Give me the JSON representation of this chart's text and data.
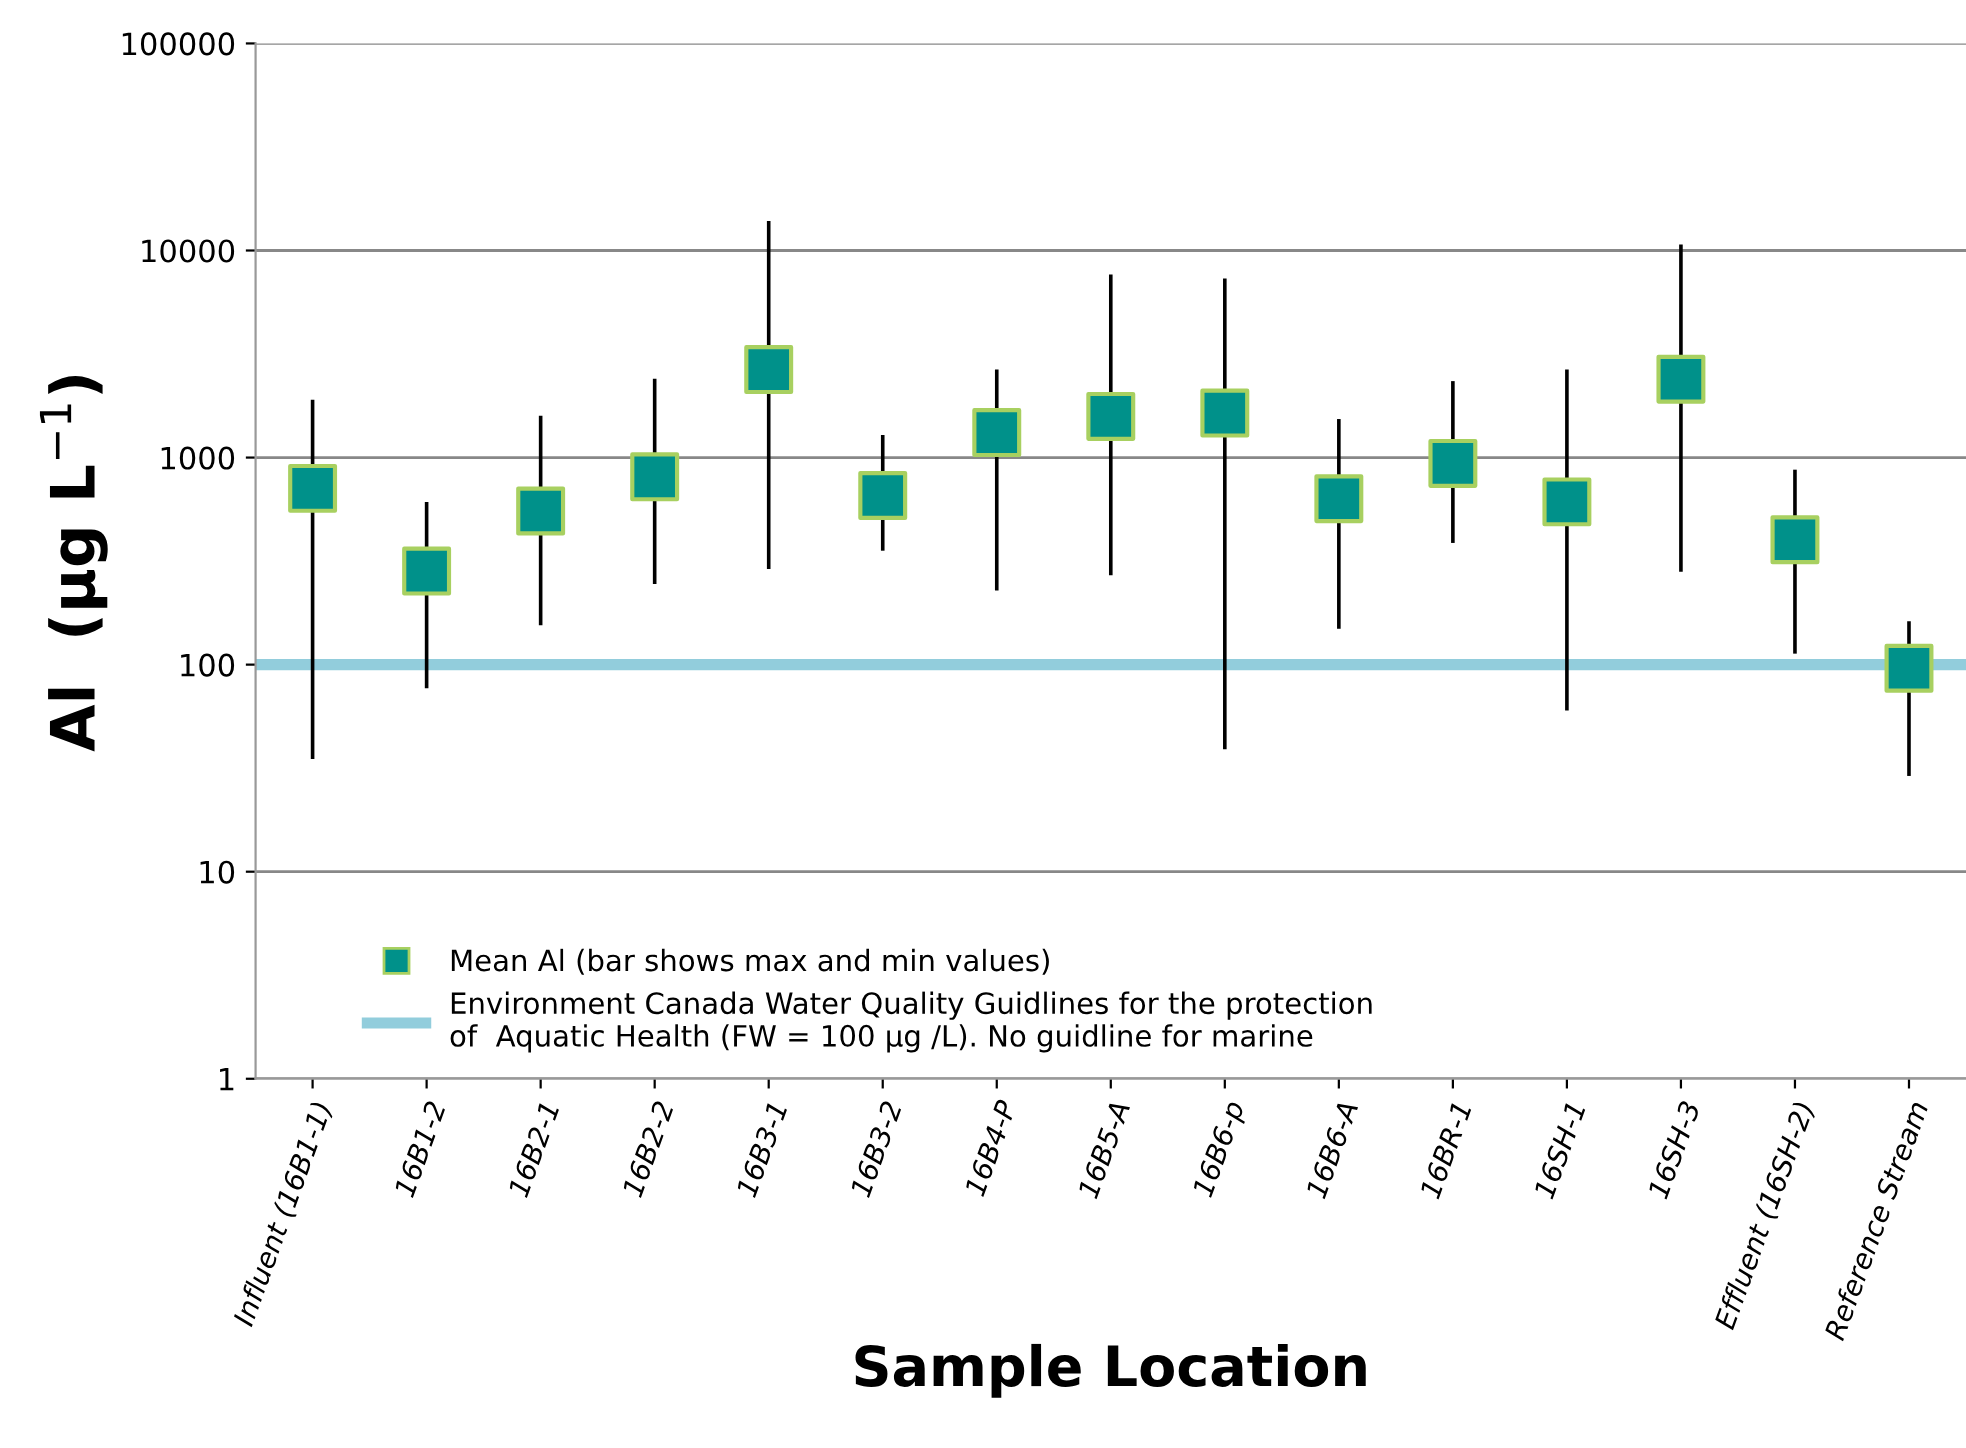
{
  "chart_data": {
    "type": "scatter",
    "xlabel": "Sample Location",
    "ylabel": "Al  (µg L$^{−1}$)",
    "categories": [
      "Influent (16B1-1)",
      "16B1-2",
      "16B2-1",
      "16B2-2",
      "16B3-1",
      "16B3-2",
      "16B4-P",
      "16B5-A",
      "16B6-p",
      "16B6-A",
      "16BR-1",
      "16SH-1",
      "16SH-3",
      "Effluent (16SH-2)",
      "Reference Stream"
    ],
    "series": [
      {
        "name": "Mean Al (bar shows max and min values)",
        "color": "#00918a",
        "values": [
          710,
          283,
          552,
          807,
          2660,
          656,
          1320,
          1580,
          1640,
          633,
          937,
          611,
          2390,
          401,
          96
        ],
        "errors": [
          [
            35,
            1900
          ],
          [
            77,
            610
          ],
          [
            155,
            1590
          ],
          [
            245,
            2400
          ],
          [
            290,
            13900
          ],
          [
            355,
            1285
          ],
          [
            228,
            2660
          ],
          [
            270,
            7650
          ],
          [
            39,
            7330
          ],
          [
            149,
            1535
          ],
          [
            387,
            2340
          ],
          [
            60,
            2660
          ],
          [
            281,
            10700
          ],
          [
            113,
            874
          ],
          [
            29,
            162
          ]
        ]
      }
    ],
    "ref_lines": [
      {
        "axis": "y",
        "value": 100,
        "label": "Environment Canada Water Quality Guidlines for the protection\nof  Aquatic Health (FW = 100 µg /L). No guidline for marine",
        "color": "#92cddc"
      }
    ],
    "log": "y",
    "ylim": [
      1,
      100000
    ],
    "yticks": [
      1,
      10,
      100,
      1000,
      10000,
      100000
    ],
    "grid": "y",
    "legend": "bottom left",
    "marker": "square"
  }
}
